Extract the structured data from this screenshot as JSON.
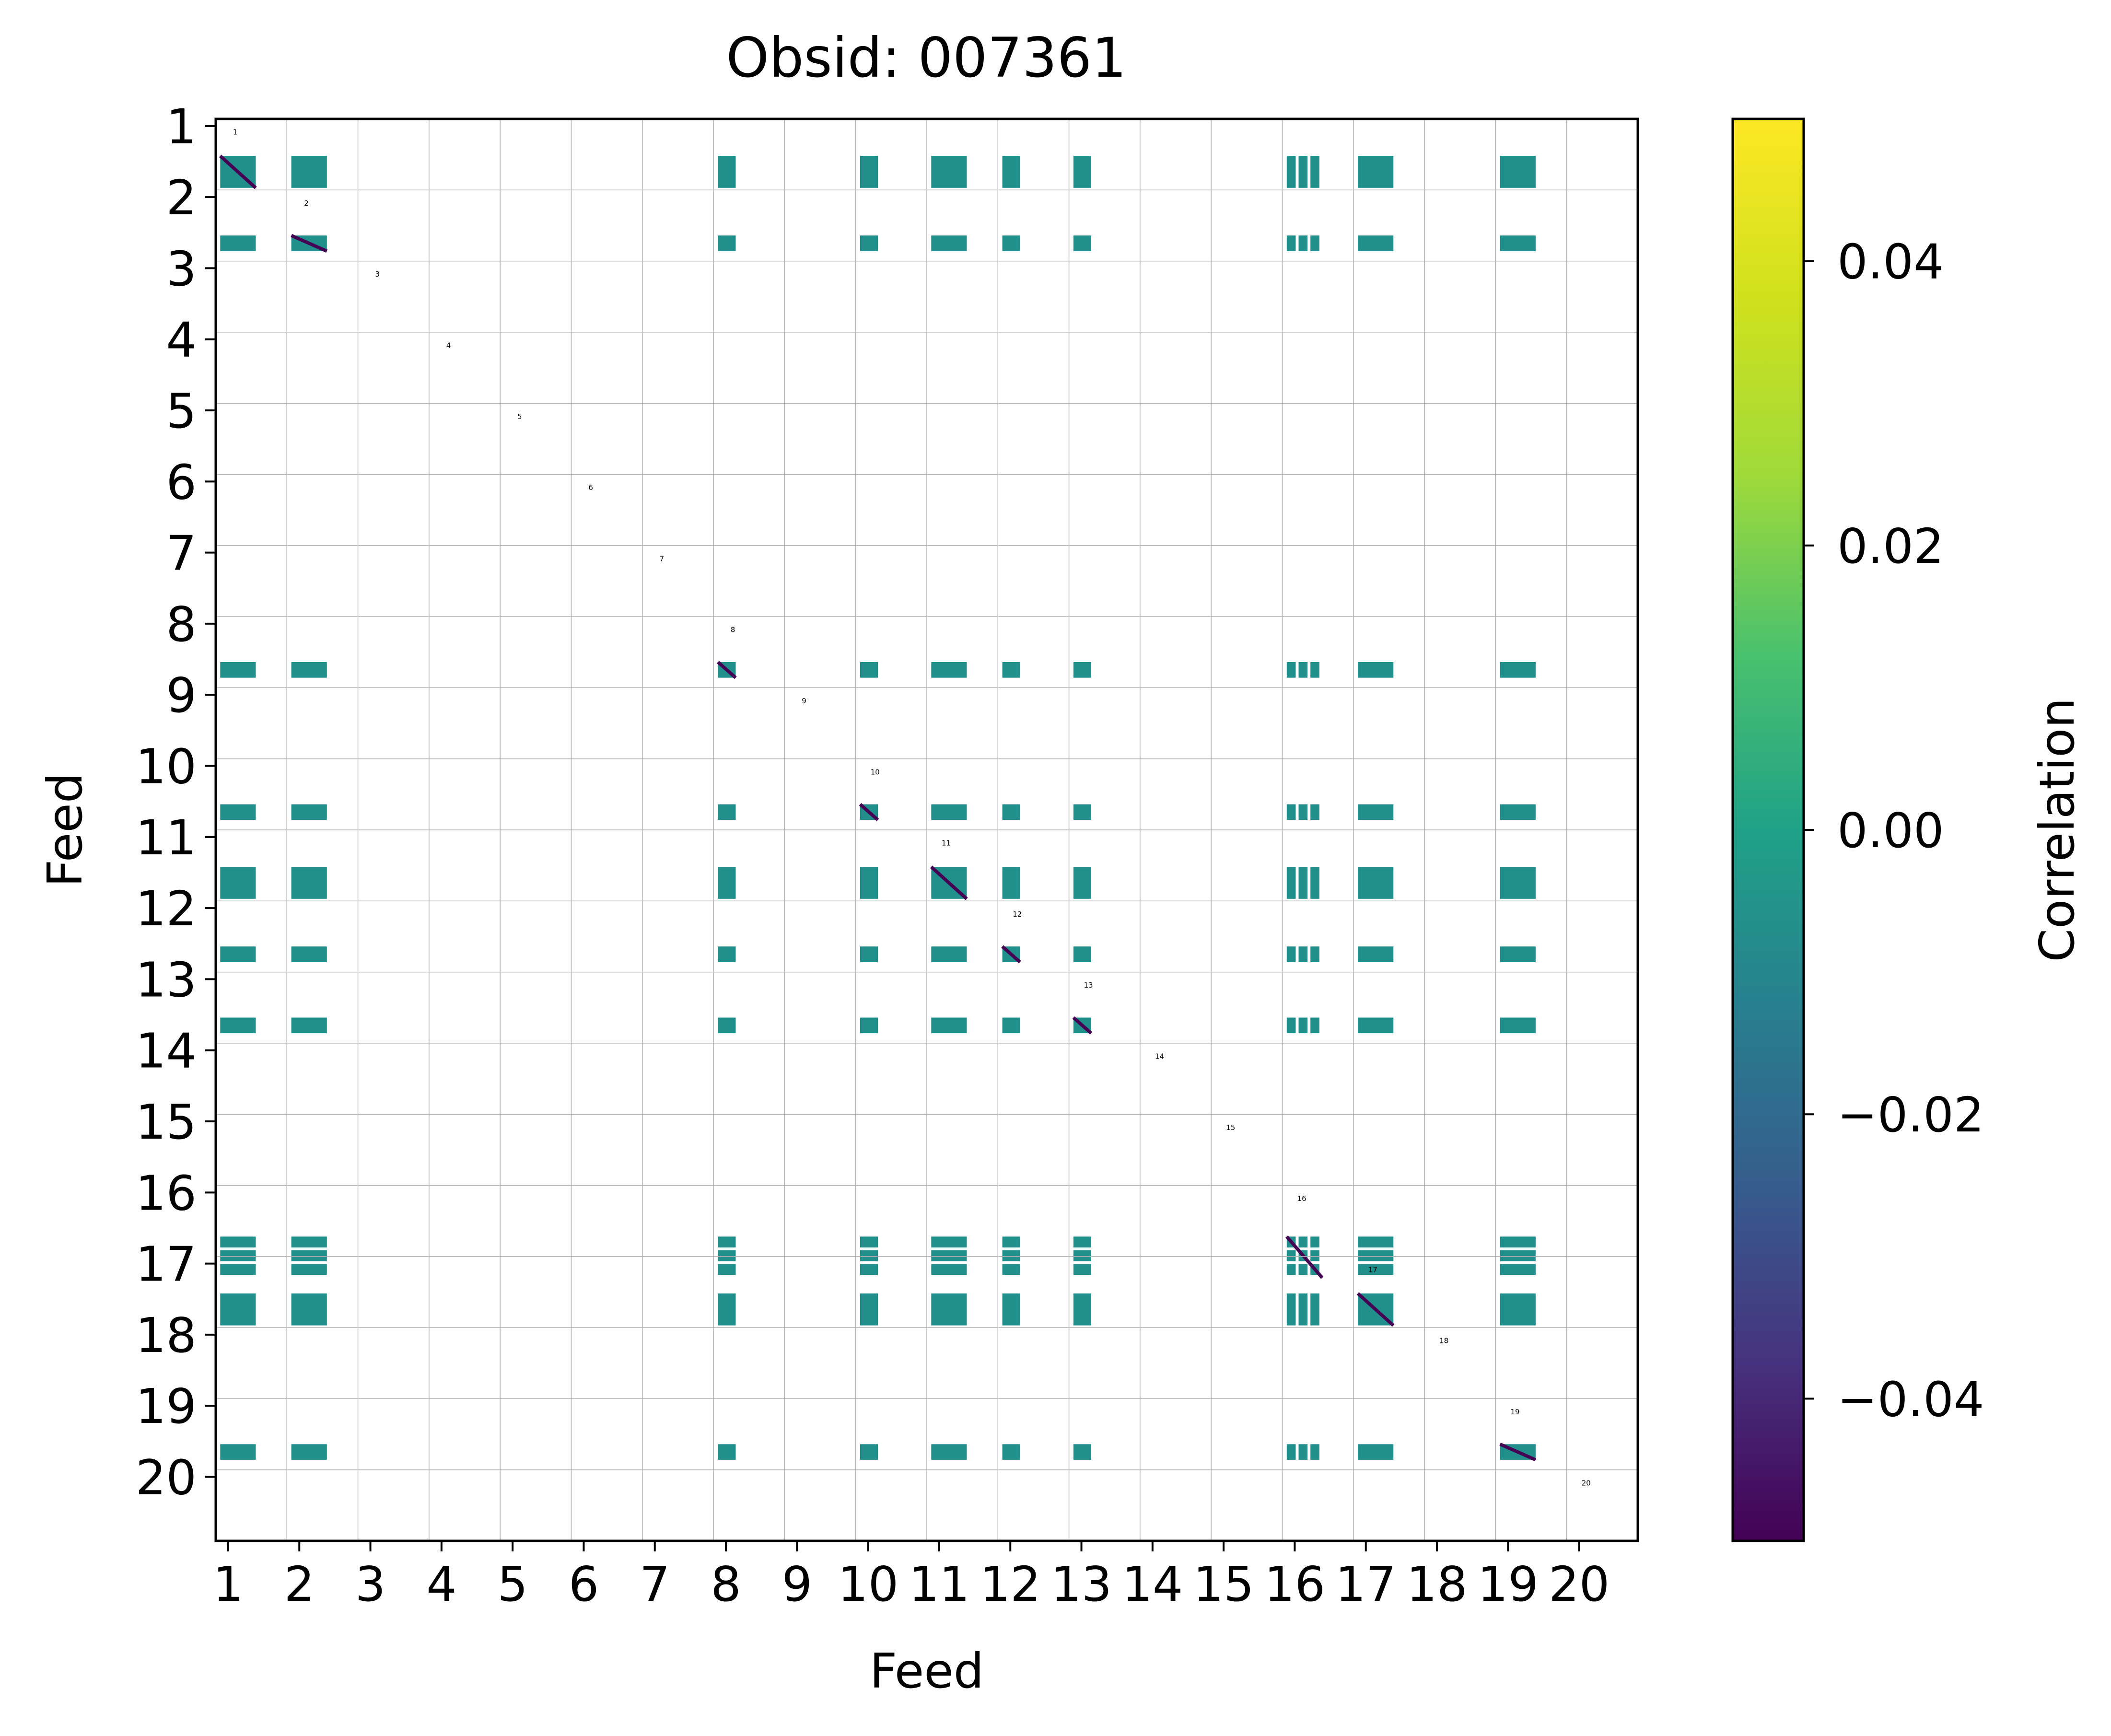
{
  "chart_data": {
    "type": "heatmap",
    "title": "Obsid: 007361",
    "xlabel": "Feed",
    "ylabel": "Feed",
    "feeds": [
      1,
      2,
      3,
      4,
      5,
      6,
      7,
      8,
      9,
      10,
      11,
      12,
      13,
      14,
      15,
      16,
      17,
      18,
      19,
      20
    ],
    "x_tick_labels": [
      "1",
      "2",
      "3",
      "4",
      "5",
      "6",
      "7",
      "8",
      "9",
      "10",
      "11",
      "12",
      "13",
      "14",
      "15",
      "16",
      "17",
      "18",
      "19",
      "20"
    ],
    "y_tick_labels": [
      "1",
      "2",
      "3",
      "4",
      "5",
      "6",
      "7",
      "8",
      "9",
      "10",
      "11",
      "12",
      "13",
      "14",
      "15",
      "16",
      "17",
      "18",
      "19",
      "20"
    ],
    "diagonal_labels": [
      "1",
      "2",
      "3",
      "4",
      "5",
      "6",
      "7",
      "8",
      "9",
      "10",
      "11",
      "12",
      "13",
      "14",
      "15",
      "16",
      "17",
      "18",
      "19",
      "20"
    ],
    "colorbar": {
      "label": "Correlation",
      "range": [
        -0.05,
        0.05
      ],
      "ticks": [
        -0.04,
        -0.02,
        0.0,
        0.02,
        0.04
      ],
      "tick_labels": [
        "−0.04",
        "−0.02",
        "0.00",
        "0.02",
        "0.04"
      ],
      "colormap": "viridis"
    },
    "active_feeds": {
      "1": {
        "cols": 4,
        "rows": [
          3
        ]
      },
      "2": {
        "cols": 4,
        "rows": [
          2
        ]
      },
      "8": {
        "cols": 2,
        "rows": [
          1
        ]
      },
      "10": {
        "cols": 2,
        "rows": [
          1
        ]
      },
      "11": {
        "cols": 4,
        "rows": [
          3
        ]
      },
      "12": {
        "cols": 2,
        "rows": [
          1
        ]
      },
      "13": {
        "cols": 2,
        "rows": [
          1
        ]
      },
      "16": {
        "cols": 4,
        "rows": [
          0,
          1,
          2
        ]
      },
      "17": {
        "cols": 4,
        "rows": [
          2
        ]
      },
      "19": {
        "cols": 4,
        "rows": [
          2
        ]
      }
    },
    "off_diagonal_value": 0.0,
    "diagonal_value": -0.05,
    "colors": {
      "off_diagonal": "#21908d",
      "diagonal": "#440154",
      "grid": "#b0b0b0",
      "axes": "#000000"
    }
  }
}
